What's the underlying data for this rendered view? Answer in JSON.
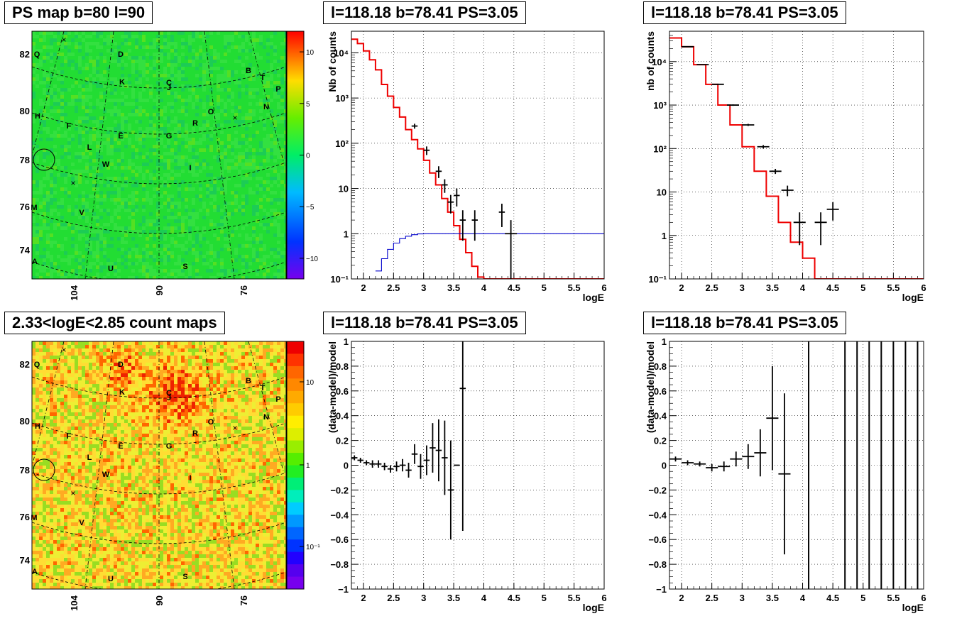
{
  "panels": {
    "map_ps": {
      "title": "PS map b=80 l=90",
      "colorbar": {
        "ticks": [
          "10",
          "5",
          "0",
          "−5",
          "−10"
        ],
        "values": [
          10,
          5,
          0,
          -5,
          -10
        ],
        "range": [
          -12,
          12
        ]
      }
    },
    "map_counts": {
      "title": "2.33<logE<2.85 count maps",
      "colorbar": {
        "ticks": [
          "10",
          "1",
          "10⁻¹"
        ],
        "values": [
          10,
          1,
          0.1
        ],
        "log": true
      }
    },
    "spec_a": {
      "title": "l=118.18 b=78.41 PS=3.05"
    },
    "spec_b": {
      "title": "l=118.18 b=78.41 PS=3.05"
    },
    "resid_a": {
      "title": "l=118.18 b=78.41 PS=3.05"
    },
    "resid_b": {
      "title": "l=118.18 b=78.41 PS=3.05"
    }
  },
  "map_axes": {
    "y_ticks": [
      "82",
      "80",
      "78",
      "76",
      "74"
    ],
    "x_ticks": [
      "104",
      "90",
      "76"
    ],
    "source_labels": [
      "Q",
      "D",
      "B",
      "T",
      "P",
      "K",
      "C",
      "J",
      "N",
      "O",
      "R",
      "H",
      "F",
      "E",
      "G",
      "L",
      "W",
      "I",
      "M",
      "V",
      "A",
      "U",
      "S"
    ],
    "colors": {
      "ps_map": "#22dd33",
      "count_map_low": "#ffee33",
      "count_map_high": "#ee3300"
    }
  },
  "chart_data": [
    {
      "type": "line",
      "title": "l=118.18 b=78.41 PS=3.05",
      "xlabel": "logE",
      "ylabel": "Nb of counts",
      "xlim": [
        1.8,
        6
      ],
      "ylim": [
        0.1,
        30000
      ],
      "ylog": true,
      "grid": true,
      "xticks": [
        "2",
        "2.5",
        "3",
        "3.5",
        "4",
        "4.5",
        "5",
        "5.5",
        "6"
      ],
      "yticks": [
        "10⁻¹",
        "1",
        "10",
        "10²",
        "10³",
        "10⁴"
      ],
      "series": [
        {
          "kind": "step",
          "color": "#ee0000",
          "edges": [
            1.8,
            1.9,
            2.0,
            2.1,
            2.2,
            2.3,
            2.4,
            2.5,
            2.6,
            2.7,
            2.8,
            2.9,
            3.0,
            3.1,
            3.2,
            3.3,
            3.4,
            3.5,
            3.6,
            3.7,
            3.8,
            3.9,
            4.0,
            4.1,
            6.0
          ],
          "values": [
            20000,
            16000,
            11000,
            7000,
            4200,
            2000,
            1100,
            620,
            380,
            200,
            120,
            75,
            42,
            22,
            12,
            6,
            3,
            1.5,
            0.75,
            0.38,
            0.19,
            0.11,
            0.1,
            0.1
          ]
        },
        {
          "kind": "step",
          "color": "#0000cc",
          "edges": [
            2.2,
            2.3,
            2.4,
            2.5,
            2.6,
            2.7,
            2.8,
            2.9,
            3.0,
            3.1,
            6.0
          ],
          "values": [
            0.15,
            0.28,
            0.45,
            0.62,
            0.78,
            0.88,
            0.95,
            0.99,
            1.0,
            1.0
          ]
        },
        {
          "kind": "errorbar",
          "color": "#000000",
          "x": [
            2.85,
            3.05,
            3.25,
            3.35,
            3.45,
            3.55,
            3.65,
            3.85,
            4.3,
            4.45
          ],
          "y": [
            240,
            70,
            24,
            12,
            5,
            7,
            2,
            2,
            3,
            1
          ],
          "xerr": [
            0.05,
            0.05,
            0.05,
            0.05,
            0.05,
            0.05,
            0.05,
            0.05,
            0.05,
            0.1
          ],
          "ylo": [
            210,
            55,
            17,
            8,
            2.8,
            4,
            0.7,
            0.7,
            1.4,
            0.1
          ],
          "yhi": [
            270,
            85,
            31,
            16,
            7.2,
            10,
            3.3,
            3.3,
            4.6,
            2
          ]
        }
      ]
    },
    {
      "type": "line",
      "title": "l=118.18 b=78.41 PS=3.05",
      "xlabel": "logE",
      "ylabel": "nb of counts",
      "xlim": [
        1.8,
        6
      ],
      "ylim": [
        0.1,
        50000
      ],
      "ylog": true,
      "grid": true,
      "xticks": [
        "2",
        "2.5",
        "3",
        "3.5",
        "4",
        "4.5",
        "5",
        "5.5",
        "6"
      ],
      "yticks": [
        "10⁻¹",
        "1",
        "10",
        "10²",
        "10³",
        "10⁴"
      ],
      "series": [
        {
          "kind": "step",
          "color": "#ee0000",
          "edges": [
            1.8,
            2.0,
            2.2,
            2.4,
            2.6,
            2.8,
            3.0,
            3.2,
            3.4,
            3.6,
            3.8,
            4.0,
            4.2,
            6.0
          ],
          "values": [
            35000,
            22000,
            8500,
            3000,
            1000,
            350,
            110,
            30,
            8,
            2,
            0.7,
            0.3,
            0.1
          ]
        },
        {
          "kind": "errorbar",
          "color": "#000000",
          "x": [
            2.1,
            2.35,
            2.6,
            2.85,
            3.1,
            3.35,
            3.55,
            3.75,
            3.95,
            4.3,
            4.5
          ],
          "y": [
            22000,
            8500,
            3000,
            1000,
            350,
            110,
            30,
            11,
            2,
            2,
            4
          ],
          "xerr": [
            0.1,
            0.1,
            0.1,
            0.1,
            0.1,
            0.1,
            0.1,
            0.1,
            0.1,
            0.1,
            0.1
          ],
          "ylo": [
            21500,
            8300,
            2900,
            960,
            330,
            100,
            26,
            8,
            0.6,
            0.6,
            2.2
          ],
          "yhi": [
            22500,
            8700,
            3100,
            1040,
            370,
            120,
            34,
            14,
            3.4,
            3.4,
            5.8
          ]
        }
      ]
    },
    {
      "type": "scatter",
      "title": "l=118.18 b=78.41 PS=3.05",
      "xlabel": "logE",
      "ylabel": "(data-model)/model",
      "xlim": [
        1.8,
        6
      ],
      "ylim": [
        -1,
        1
      ],
      "grid": true,
      "xticks": [
        "2",
        "2.5",
        "3",
        "3.5",
        "4",
        "4.5",
        "5",
        "5.5",
        "6"
      ],
      "yticks": [
        "−1",
        "−0.8",
        "−0.6",
        "−0.4",
        "−0.2",
        "0",
        "0.2",
        "0.4",
        "0.6",
        "0.8",
        "1"
      ],
      "series": [
        {
          "kind": "errorbar",
          "color": "#000000",
          "x": [
            1.85,
            1.95,
            2.05,
            2.15,
            2.25,
            2.35,
            2.45,
            2.55,
            2.65,
            2.75,
            2.85,
            2.95,
            3.05,
            3.15,
            3.25,
            3.35,
            3.45,
            3.55,
            3.65
          ],
          "y": [
            0.06,
            0.04,
            0.02,
            0.01,
            0.01,
            -0.01,
            -0.03,
            -0.01,
            0.0,
            -0.04,
            0.09,
            -0.01,
            0.04,
            0.14,
            0.12,
            0.06,
            -0.2,
            0.0,
            0.62
          ],
          "xerr": [
            0.05,
            0.05,
            0.05,
            0.05,
            0.05,
            0.05,
            0.05,
            0.05,
            0.05,
            0.05,
            0.05,
            0.05,
            0.05,
            0.05,
            0.05,
            0.05,
            0.05,
            0.05,
            0.05
          ],
          "yerr": [
            0.02,
            0.02,
            0.02,
            0.03,
            0.03,
            0.03,
            0.03,
            0.04,
            0.05,
            0.06,
            0.08,
            0.1,
            0.12,
            0.2,
            0.25,
            0.3,
            0.4,
            0.0,
            1.15
          ]
        }
      ]
    },
    {
      "type": "scatter",
      "title": "l=118.18 b=78.41 PS=3.05",
      "xlabel": "logE",
      "ylabel": "(data-model)/model",
      "xlim": [
        1.8,
        6
      ],
      "ylim": [
        -1,
        1
      ],
      "grid": true,
      "xticks": [
        "2",
        "2.5",
        "3",
        "3.5",
        "4",
        "4.5",
        "5",
        "5.5",
        "6"
      ],
      "yticks": [
        "−1",
        "−0.8",
        "−0.6",
        "−0.4",
        "−0.2",
        "0",
        "0.2",
        "0.4",
        "0.6",
        "0.8",
        "1"
      ],
      "series": [
        {
          "kind": "errorbar",
          "color": "#000000",
          "x": [
            1.9,
            2.1,
            2.3,
            2.5,
            2.7,
            2.9,
            3.1,
            3.3,
            3.5,
            3.7
          ],
          "y": [
            0.05,
            0.02,
            0.01,
            -0.02,
            -0.01,
            0.05,
            0.07,
            0.1,
            0.38,
            -0.07
          ],
          "xerr": [
            0.1,
            0.1,
            0.1,
            0.1,
            0.1,
            0.1,
            0.1,
            0.1,
            0.1,
            0.1
          ],
          "yerr": [
            0.02,
            0.02,
            0.02,
            0.03,
            0.04,
            0.06,
            0.1,
            0.19,
            0.42,
            0.65
          ]
        },
        {
          "kind": "vlines",
          "color": "#000000",
          "x": [
            4.1,
            4.7,
            4.9,
            5.1,
            5.3,
            5.5,
            5.7,
            5.9
          ]
        }
      ]
    }
  ]
}
